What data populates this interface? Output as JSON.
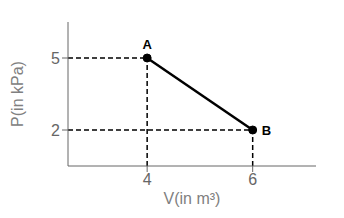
{
  "chart_data": {
    "type": "line",
    "x": [
      4,
      6
    ],
    "values": [
      5,
      2
    ],
    "color": "#000000",
    "xlabel": "V(in m³)",
    "ylabel": "P(in kPa)",
    "xlim": [
      2.5,
      7.2
    ],
    "ylim": [
      0.5,
      6.5
    ],
    "xticks": [
      4,
      6
    ],
    "yticks": [
      2,
      5
    ],
    "grid": false,
    "annotations": [
      {
        "text": "A",
        "x": 4,
        "y": 5
      },
      {
        "text": "B",
        "x": 6,
        "y": 2
      }
    ]
  }
}
